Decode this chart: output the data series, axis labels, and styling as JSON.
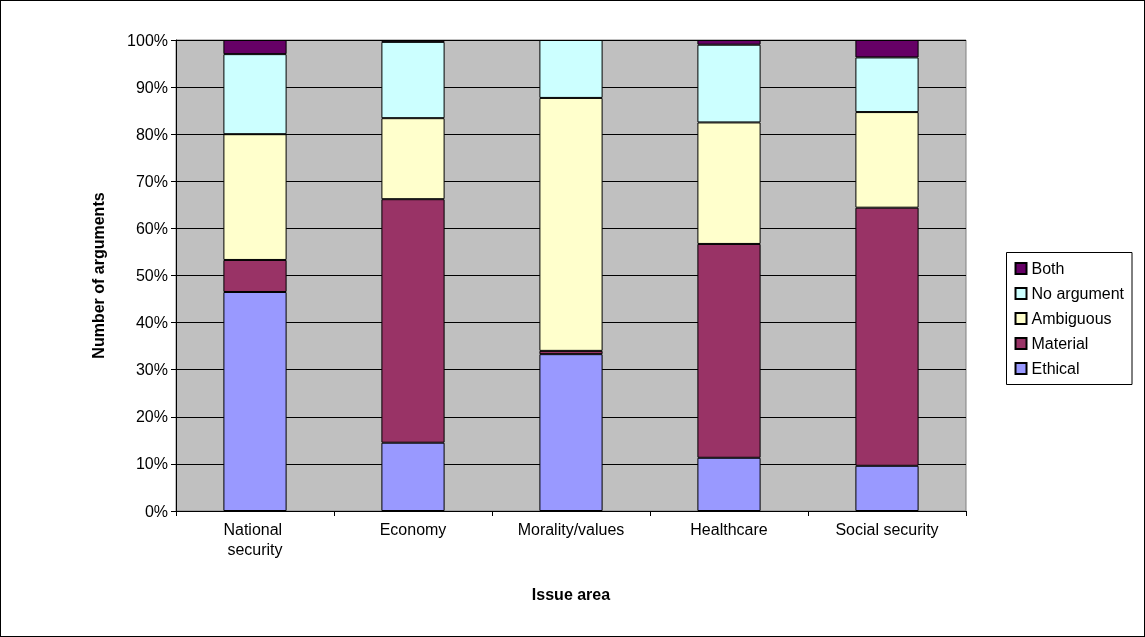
{
  "chart_data": {
    "type": "bar",
    "stacked": true,
    "xlabel": "Issue area",
    "ylabel": "Number of arguments",
    "categories": [
      "National security",
      "Economy",
      "Morality/values",
      "Healthcare",
      "Social security"
    ],
    "series": [
      {
        "name": "Ethical",
        "color": "#9999ff",
        "values": [
          46.5,
          14.5,
          33.3,
          11.3,
          9.6
        ]
      },
      {
        "name": "Material",
        "color": "#993366",
        "values": [
          6.8,
          51.7,
          0.7,
          45.4,
          54.8
        ]
      },
      {
        "name": "Ambiguous",
        "color": "#ffffcc",
        "values": [
          26.7,
          17.2,
          53.7,
          25.8,
          20.3
        ]
      },
      {
        "name": "No argument",
        "color": "#ccffff",
        "values": [
          17,
          16.2,
          12.3,
          16.5,
          11.6
        ]
      },
      {
        "name": "Both",
        "color": "#660066",
        "values": [
          3,
          0.4,
          0,
          1,
          3.7
        ]
      }
    ],
    "ylim": [
      0,
      100
    ],
    "yticks": [
      {
        "value": 0,
        "label": "0%"
      },
      {
        "value": 10,
        "label": "10%"
      },
      {
        "value": 20,
        "label": "20%"
      },
      {
        "value": 30,
        "label": "30%"
      },
      {
        "value": 40,
        "label": "40%"
      },
      {
        "value": 50,
        "label": "50%"
      },
      {
        "value": 60,
        "label": "60%"
      },
      {
        "value": 70,
        "label": "70%"
      },
      {
        "value": 80,
        "label": "80%"
      },
      {
        "value": 90,
        "label": "90%"
      },
      {
        "value": 100,
        "label": "100%"
      }
    ],
    "grid": "y",
    "legend": "right"
  }
}
